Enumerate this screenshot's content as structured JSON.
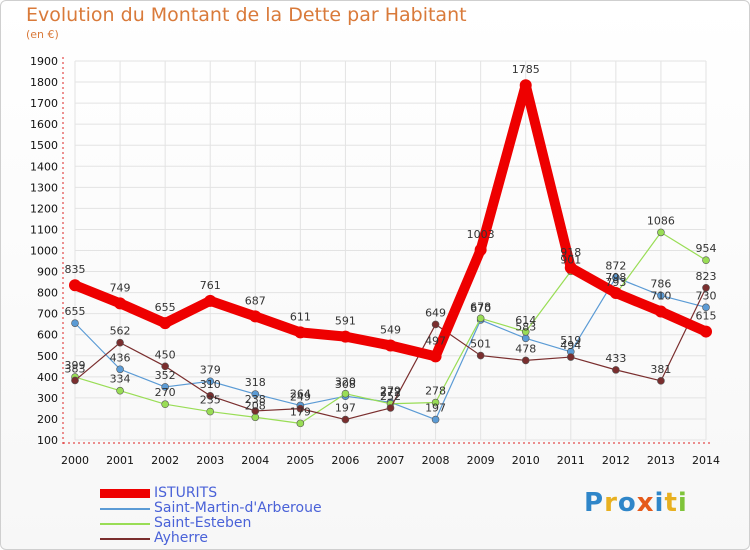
{
  "header": {
    "title": "Evolution du Montant de la Dette par Habitant",
    "unit": "(en €)"
  },
  "logo": {
    "letters": [
      "P",
      "r",
      "o",
      "x",
      "i",
      "t",
      "i"
    ],
    "colors": [
      "#2f86c9",
      "#e8b020",
      "#2f86c9",
      "#e55a1a",
      "#2f86c9",
      "#e8b020",
      "#7fc43a"
    ]
  },
  "chart_data": {
    "type": "line",
    "title": "Evolution du Montant de la Dette par Habitant",
    "ylabel": "(en €)",
    "xlabel": "",
    "x": [
      "2000",
      "2001",
      "2002",
      "2003",
      "2004",
      "2005",
      "2006",
      "2007",
      "2008",
      "2009",
      "2010",
      "2011",
      "2012",
      "2013",
      "2014"
    ],
    "ylim": [
      100,
      1900
    ],
    "yticks": [
      "100",
      "200",
      "300",
      "400",
      "500",
      "600",
      "700",
      "800",
      "900",
      "1000",
      "1100",
      "1200",
      "1300",
      "1400",
      "1500",
      "1600",
      "1700",
      "1800",
      "1900"
    ],
    "grid": true,
    "legend_position": "bottom-left",
    "series": [
      {
        "name": "ISTURITS",
        "color": "#ee0000",
        "values": [
          835,
          749,
          655,
          761,
          687,
          611,
          591,
          549,
          497,
          1003,
          1785,
          918,
          798,
          710,
          615
        ],
        "labels": [
          "835",
          "749",
          "655",
          "761",
          "687",
          "611",
          "591",
          "549",
          "497",
          "1003",
          "1785",
          "918",
          "798",
          "710",
          "615"
        ]
      },
      {
        "name": "Saint-Martin-d'Arberoue",
        "color": "#5b9bd5",
        "values": [
          655,
          436,
          352,
          379,
          318,
          264,
          308,
          279,
          197,
          670,
          583,
          519,
          872,
          786,
          730
        ],
        "labels": [
          "655",
          "436",
          "352",
          "379",
          "318",
          "264",
          "308",
          "279",
          "197",
          "670",
          "583",
          "519",
          "872",
          "786",
          "730"
        ]
      },
      {
        "name": "Saint-Esteben",
        "color": "#99dd55",
        "values": [
          399,
          334,
          270,
          235,
          208,
          179,
          320,
          272,
          278,
          678,
          614,
          901,
          793,
          1086,
          954
        ],
        "labels": [
          "399",
          "334",
          "270",
          "235",
          "208",
          "179",
          "320",
          "272",
          "278",
          "678",
          "614",
          "901",
          "793",
          "1086",
          "954"
        ]
      },
      {
        "name": "Ayherre",
        "color": "#7a2e2e",
        "values": [
          383,
          562,
          450,
          310,
          238,
          249,
          197,
          252,
          649,
          501,
          478,
          494,
          433,
          381,
          823
        ],
        "labels": [
          "383",
          "562",
          "450",
          "310",
          "238",
          "249",
          "197",
          "252",
          "649",
          "501",
          "478",
          "494",
          "433",
          "381",
          "823"
        ]
      }
    ]
  }
}
